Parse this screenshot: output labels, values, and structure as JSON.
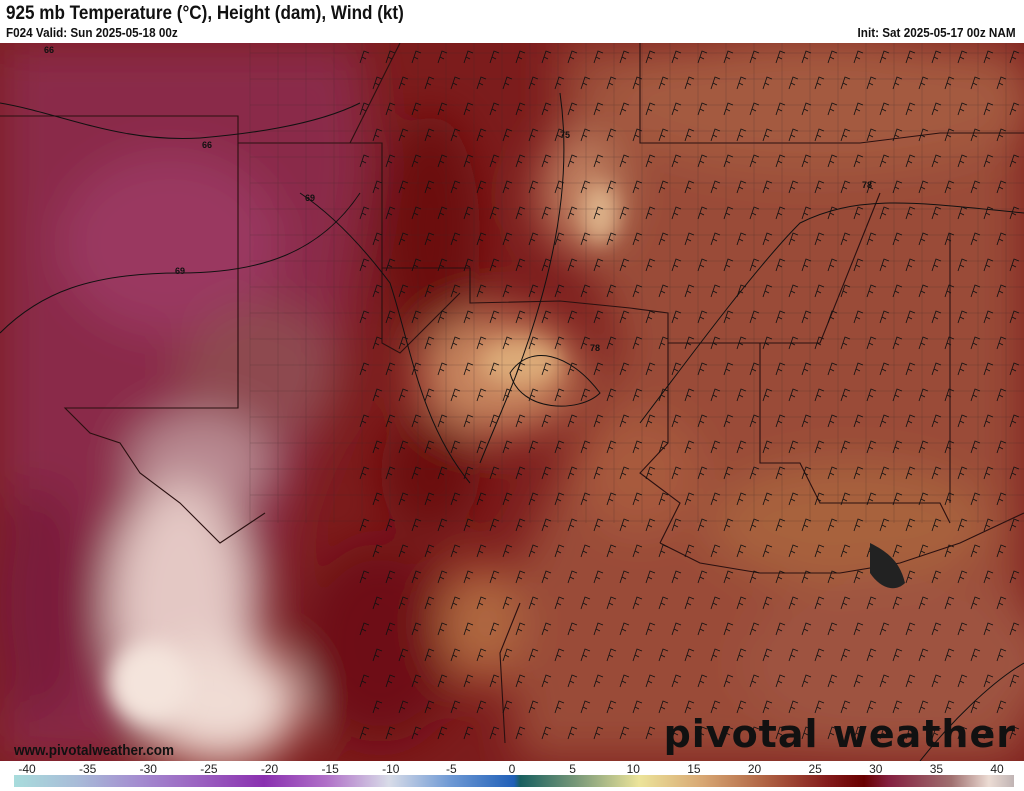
{
  "header": {
    "title": "925 mb Temperature (°C), Height (dam), Wind (kt)",
    "valid": "F024 Valid: Sun 2025-05-18 00z",
    "init": "Init: Sat 2025-05-17 00z NAM"
  },
  "footer": {
    "website": "www.pivotalweather.com",
    "brand": "pivotal weather"
  },
  "map": {
    "height_contour_labels": [
      "66",
      "66",
      "69",
      "69",
      "75",
      "78",
      "78"
    ],
    "colors": {
      "base": "#7c1c1c",
      "east": "#9a4b38",
      "west": "#8a2a4a",
      "cold": "#ecd8d0",
      "warm_pocket": "#c88a60"
    }
  },
  "colorbar": {
    "ticks": [
      "-40",
      "-35",
      "-30",
      "-25",
      "-20",
      "-15",
      "-10",
      "-5",
      "0",
      "5",
      "10",
      "15",
      "20",
      "25",
      "30",
      "35",
      "40"
    ],
    "stops": [
      {
        "v": -40,
        "c": "#a8dcdc"
      },
      {
        "v": -35,
        "c": "#a8bcd8"
      },
      {
        "v": -30,
        "c": "#a48cd0"
      },
      {
        "v": -25,
        "c": "#9a60c0"
      },
      {
        "v": -20,
        "c": "#8a30b0"
      },
      {
        "v": -15,
        "c": "#b070c8"
      },
      {
        "v": -10,
        "c": "#d8dce8"
      },
      {
        "v": -5,
        "c": "#6c98d4"
      },
      {
        "v": 0,
        "c": "#2060b8"
      },
      {
        "v": 0.5,
        "c": "#186060"
      },
      {
        "v": 5,
        "c": "#789878"
      },
      {
        "v": 10,
        "c": "#ece49a"
      },
      {
        "v": 15,
        "c": "#d8a874"
      },
      {
        "v": 20,
        "c": "#b06444"
      },
      {
        "v": 25,
        "c": "#841c1c"
      },
      {
        "v": 28,
        "c": "#680000"
      },
      {
        "v": 30,
        "c": "#842040"
      },
      {
        "v": 35,
        "c": "#a07070"
      },
      {
        "v": 38,
        "c": "#ecdcd4"
      },
      {
        "v": 40,
        "c": "#c0b4b4"
      }
    ]
  }
}
